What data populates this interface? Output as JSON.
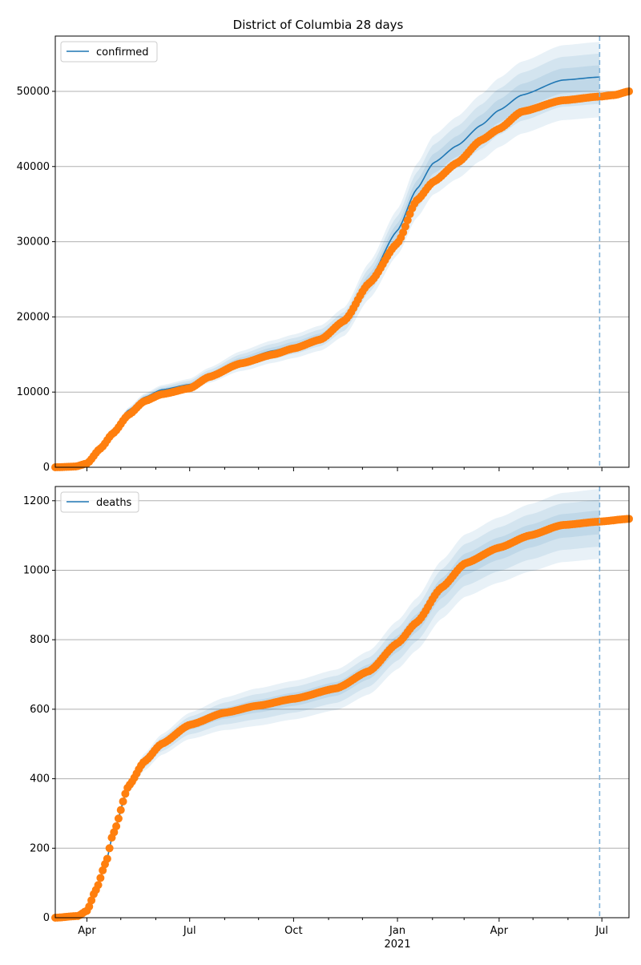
{
  "chart_data": [
    {
      "type": "line",
      "title": "District of Columbia 28 days",
      "legend": {
        "label": "confirmed",
        "placement": "top-left"
      },
      "x_start_date": "2020-03-04",
      "x_end_day": 508,
      "forecast_start_day": 482,
      "xticks": [
        {
          "day": 28,
          "label": "Apr"
        },
        {
          "day": 119,
          "label": "Jul"
        },
        {
          "day": 211,
          "label": "Oct"
        },
        {
          "day": 303,
          "label": "Jan"
        },
        {
          "day": 393,
          "label": "Apr"
        },
        {
          "day": 484,
          "label": "Jul"
        }
      ],
      "xtick_sublabel": {
        "day": 303,
        "label": "2021"
      },
      "minor_tick_days": [
        58,
        89,
        150,
        180,
        242,
        272,
        334,
        362,
        423,
        454
      ],
      "ylim": [
        0,
        57350
      ],
      "yticks": [
        0,
        10000,
        20000,
        30000,
        40000,
        50000
      ],
      "grid": "horizontal",
      "observed": [
        [
          0,
          0
        ],
        [
          18,
          100
        ],
        [
          28,
          500
        ],
        [
          40,
          2500
        ],
        [
          51,
          4500
        ],
        [
          65,
          7000
        ],
        [
          79,
          8800
        ],
        [
          94,
          9700
        ],
        [
          119,
          10500
        ],
        [
          136,
          12000
        ],
        [
          164,
          13800
        ],
        [
          193,
          15000
        ],
        [
          211,
          15800
        ],
        [
          235,
          17000
        ],
        [
          256,
          19500
        ],
        [
          278,
          24500
        ],
        [
          303,
          29800
        ],
        [
          320,
          35500
        ],
        [
          335,
          38000
        ],
        [
          356,
          40500
        ],
        [
          377,
          43500
        ],
        [
          393,
          45000
        ],
        [
          413,
          47300
        ],
        [
          449,
          48800
        ],
        [
          482,
          49300
        ],
        [
          495,
          49500
        ],
        [
          508,
          50000
        ]
      ],
      "model": [
        [
          0,
          0
        ],
        [
          18,
          100
        ],
        [
          28,
          500
        ],
        [
          40,
          2800
        ],
        [
          51,
          5000
        ],
        [
          65,
          7600
        ],
        [
          79,
          9300
        ],
        [
          94,
          10300
        ],
        [
          119,
          11000
        ],
        [
          136,
          12300
        ],
        [
          164,
          14200
        ],
        [
          193,
          15500
        ],
        [
          211,
          16200
        ],
        [
          235,
          17300
        ],
        [
          256,
          19500
        ],
        [
          278,
          25000
        ],
        [
          303,
          31500
        ],
        [
          320,
          37000
        ],
        [
          335,
          40500
        ],
        [
          356,
          42800
        ],
        [
          377,
          45500
        ],
        [
          393,
          47500
        ],
        [
          413,
          49500
        ],
        [
          449,
          51500
        ],
        [
          482,
          51900
        ]
      ],
      "band_relative_widths": [
        0.03,
        0.06,
        0.09
      ]
    },
    {
      "type": "line",
      "title": "",
      "legend": {
        "label": "deaths",
        "placement": "top-left"
      },
      "x_start_date": "2020-03-04",
      "x_end_day": 508,
      "forecast_start_day": 482,
      "ylim": [
        0,
        1241
      ],
      "yticks": [
        0,
        200,
        400,
        600,
        800,
        1000,
        1200
      ],
      "grid": "horizontal",
      "observed": [
        [
          0,
          0
        ],
        [
          20,
          5
        ],
        [
          28,
          20
        ],
        [
          36,
          80
        ],
        [
          45,
          160
        ],
        [
          51,
          240
        ],
        [
          65,
          380
        ],
        [
          79,
          450
        ],
        [
          94,
          500
        ],
        [
          119,
          555
        ],
        [
          150,
          590
        ],
        [
          179,
          610
        ],
        [
          211,
          630
        ],
        [
          249,
          660
        ],
        [
          278,
          710
        ],
        [
          303,
          790
        ],
        [
          320,
          850
        ],
        [
          342,
          950
        ],
        [
          363,
          1020
        ],
        [
          393,
          1065
        ],
        [
          420,
          1100
        ],
        [
          449,
          1130
        ],
        [
          482,
          1140
        ],
        [
          508,
          1148
        ]
      ],
      "model": [
        [
          0,
          0
        ],
        [
          20,
          5
        ],
        [
          28,
          20
        ],
        [
          36,
          80
        ],
        [
          45,
          160
        ],
        [
          51,
          240
        ],
        [
          65,
          380
        ],
        [
          79,
          450
        ],
        [
          94,
          500
        ],
        [
          119,
          555
        ],
        [
          150,
          590
        ],
        [
          179,
          610
        ],
        [
          211,
          630
        ],
        [
          249,
          660
        ],
        [
          278,
          710
        ],
        [
          303,
          790
        ],
        [
          320,
          850
        ],
        [
          342,
          950
        ],
        [
          363,
          1020
        ],
        [
          393,
          1065
        ],
        [
          420,
          1100
        ],
        [
          449,
          1130
        ],
        [
          482,
          1140
        ]
      ],
      "band_relative_widths": [
        0.028,
        0.055,
        0.082
      ]
    }
  ],
  "colors": {
    "model": "#1f77b4",
    "observed": "#ff7f0e",
    "grid": "#b0b0b0",
    "forecast_line": "#7fb2d9"
  }
}
